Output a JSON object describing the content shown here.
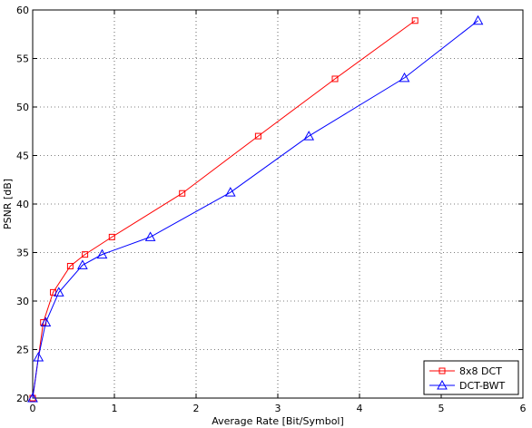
{
  "chart_data": {
    "type": "line",
    "title": "",
    "xlabel": "Average Rate [Bit/Symbol]",
    "ylabel": "PSNR [dB]",
    "xlim": [
      0,
      6
    ],
    "ylim": [
      20,
      60
    ],
    "xticks": [
      0,
      1,
      2,
      3,
      4,
      5,
      6
    ],
    "yticks": [
      20,
      25,
      30,
      35,
      40,
      45,
      50,
      55,
      60
    ],
    "grid": true,
    "legend_position": "bottom-right",
    "series": [
      {
        "name": "8x8 DCT",
        "color": "#ff0000",
        "marker": "square",
        "x": [
          0.0,
          0.13,
          0.25,
          0.46,
          0.64,
          0.97,
          1.83,
          2.76,
          3.7,
          4.68
        ],
        "y": [
          20.0,
          27.8,
          30.9,
          33.6,
          34.8,
          36.6,
          41.1,
          47.0,
          52.9,
          58.9
        ]
      },
      {
        "name": "DCT-BWT",
        "color": "#0000ff",
        "marker": "triangle",
        "x": [
          0.0,
          0.07,
          0.16,
          0.32,
          0.61,
          0.85,
          1.44,
          2.42,
          3.38,
          4.55,
          5.45
        ],
        "y": [
          20.0,
          24.2,
          27.8,
          30.9,
          33.7,
          34.8,
          36.6,
          41.2,
          47.0,
          53.0,
          58.9
        ]
      }
    ]
  }
}
